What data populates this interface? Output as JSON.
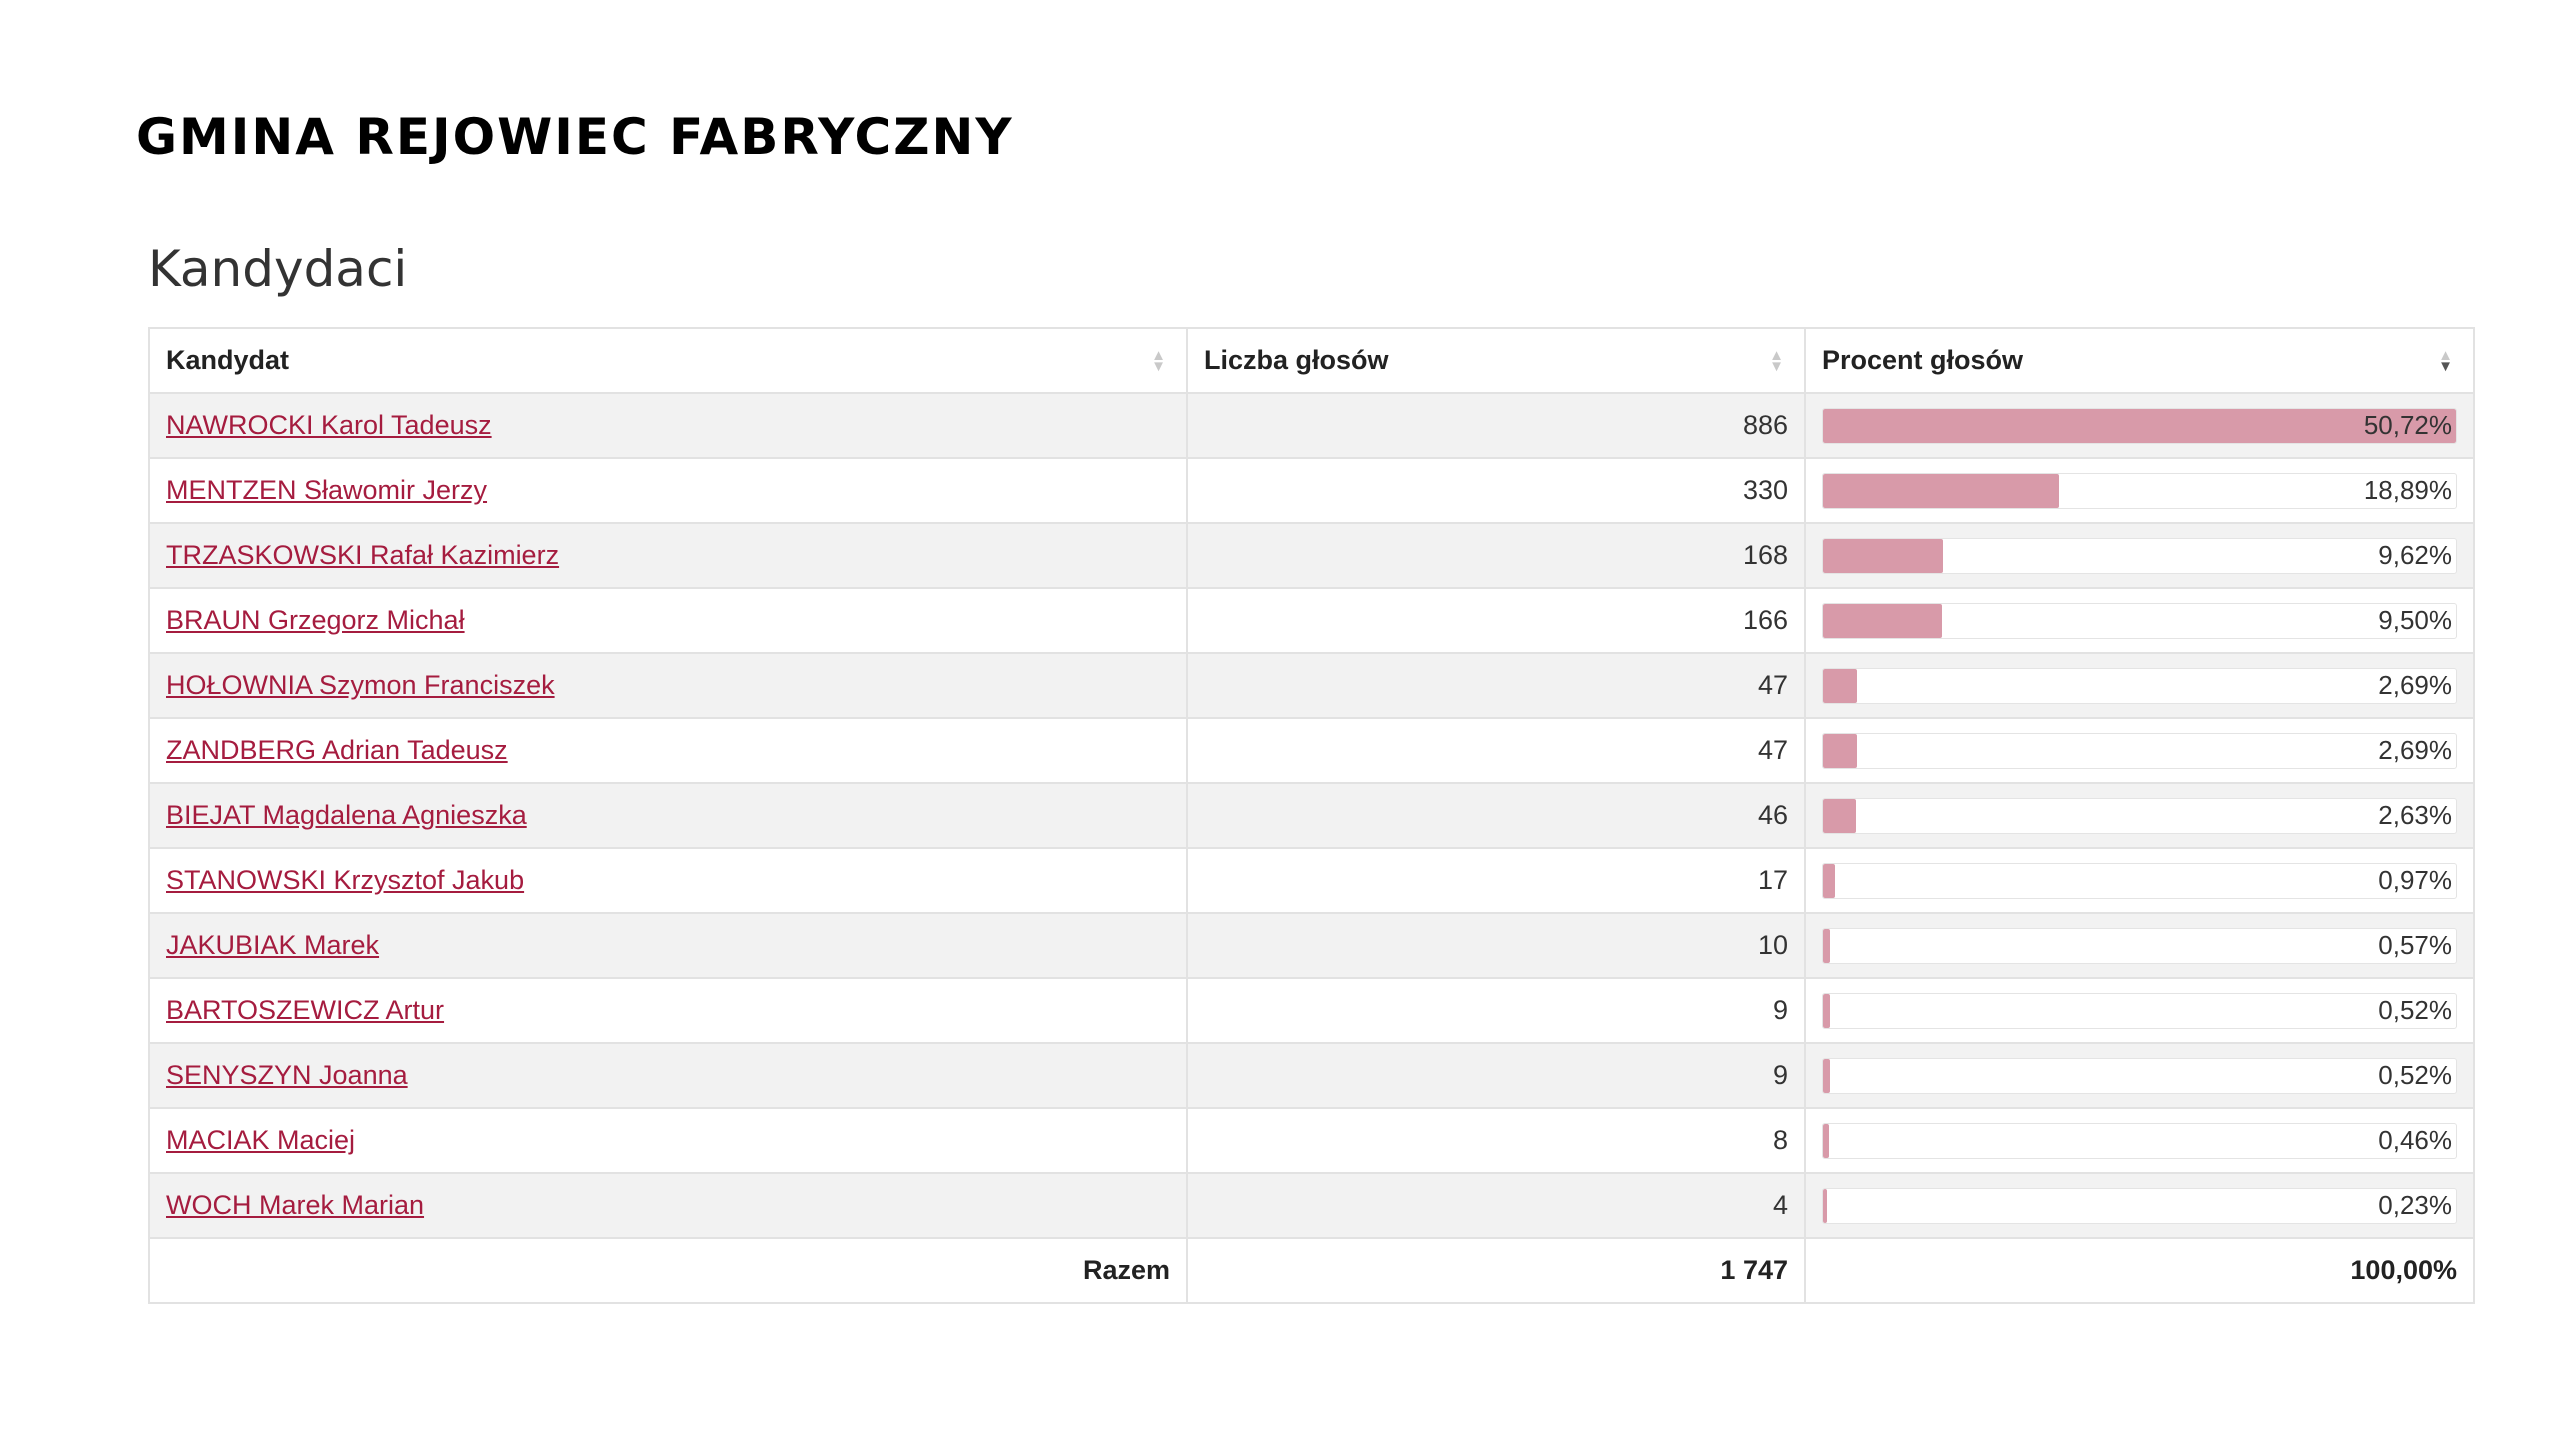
{
  "page_title": "GMINA REJOWIEC FABRYCZNY",
  "section_title": "Kandydaci",
  "colors": {
    "link": "#a51c3f",
    "bar_fill": "#d89aa9",
    "row_stripe": "#f2f2f2"
  },
  "table": {
    "headers": {
      "candidate": "Kandydat",
      "votes": "Liczba głosów",
      "percent": "Procent głosów"
    },
    "sort": {
      "column": "percent",
      "direction": "desc"
    },
    "rows": [
      {
        "name": "NAWROCKI Karol Tadeusz",
        "votes": "886",
        "percent": "50,72%",
        "share": 1.0
      },
      {
        "name": "MENTZEN Sławomir Jerzy",
        "votes": "330",
        "percent": "18,89%",
        "share": 0.3725
      },
      {
        "name": "TRZASKOWSKI Rafał Kazimierz",
        "votes": "168",
        "percent": "9,62%",
        "share": 0.1897
      },
      {
        "name": "BRAUN Grzegorz Michał",
        "votes": "166",
        "percent": "9,50%",
        "share": 0.1873
      },
      {
        "name": "HOŁOWNIA Szymon Franciszek",
        "votes": "47",
        "percent": "2,69%",
        "share": 0.053
      },
      {
        "name": "ZANDBERG Adrian Tadeusz",
        "votes": "47",
        "percent": "2,69%",
        "share": 0.053
      },
      {
        "name": "BIEJAT Magdalena Agnieszka",
        "votes": "46",
        "percent": "2,63%",
        "share": 0.0519
      },
      {
        "name": "STANOWSKI Krzysztof Jakub",
        "votes": "17",
        "percent": "0,97%",
        "share": 0.0191
      },
      {
        "name": "JAKUBIAK Marek",
        "votes": "10",
        "percent": "0,57%",
        "share": 0.0112
      },
      {
        "name": "BARTOSZEWICZ Artur",
        "votes": "9",
        "percent": "0,52%",
        "share": 0.0103
      },
      {
        "name": "SENYSZYN Joanna",
        "votes": "9",
        "percent": "0,52%",
        "share": 0.0103
      },
      {
        "name": "MACIAK Maciej",
        "votes": "8",
        "percent": "0,46%",
        "share": 0.0091
      },
      {
        "name": "WOCH Marek Marian",
        "votes": "4",
        "percent": "0,23%",
        "share": 0.0045
      }
    ],
    "total": {
      "label": "Razem",
      "votes": "1 747",
      "percent": "100,00%"
    }
  }
}
